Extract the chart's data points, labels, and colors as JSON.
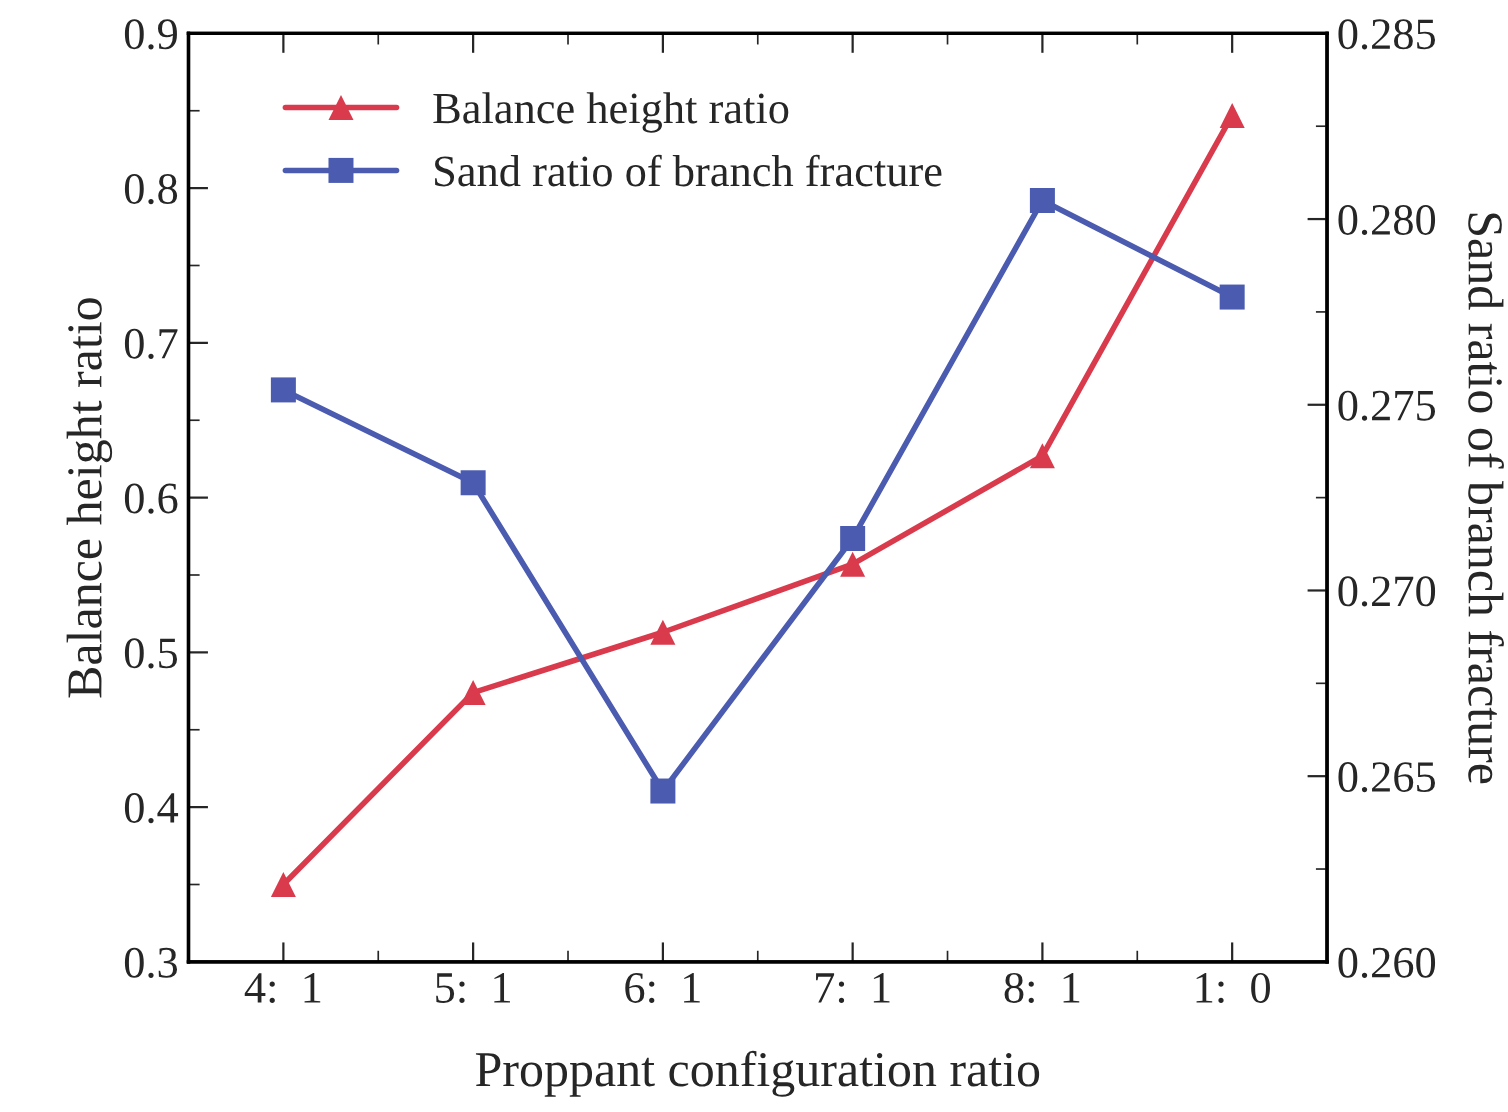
{
  "chart_data": {
    "type": "line",
    "xlabel": "Proppant configuration ratio",
    "ylabel": "Balance height ratio",
    "y2label": "Sand ratio of branch fracture",
    "categories": [
      "4:  1",
      "5:  1",
      "6:  1",
      "7:  1",
      "8:  1",
      "1:  0"
    ],
    "series": [
      {
        "name": "Balance height ratio",
        "color": "#d93a4c",
        "marker": "triangle",
        "values": [
          0.35,
          0.474,
          0.513,
          0.557,
          0.627,
          0.847
        ]
      },
      {
        "name": "Sand ratio of branch fracture",
        "color": "#4a5bb0",
        "marker": "square",
        "axis": "y2",
        "values": [
          0.2754,
          0.2729,
          0.2646,
          0.2714,
          0.2805,
          0.2779
        ]
      }
    ],
    "ylim": [
      0.3,
      0.9
    ],
    "yticks": [
      0.3,
      0.4,
      0.5,
      0.6,
      0.7,
      0.8,
      0.9
    ],
    "y2lim": [
      0.26,
      0.285
    ],
    "y2ticks": [
      {
        "value": 0.26,
        "label": "0.260"
      },
      {
        "value": 0.265,
        "label": "0.265"
      },
      {
        "value": 0.27,
        "label": "0.270"
      },
      {
        "value": 0.275,
        "label": "0.275"
      },
      {
        "value": 0.28,
        "label": "0.280"
      },
      {
        "value": 0.285,
        "label": "0.285"
      }
    ],
    "legend": "top left",
    "grid": false,
    "line_style": "solid"
  }
}
